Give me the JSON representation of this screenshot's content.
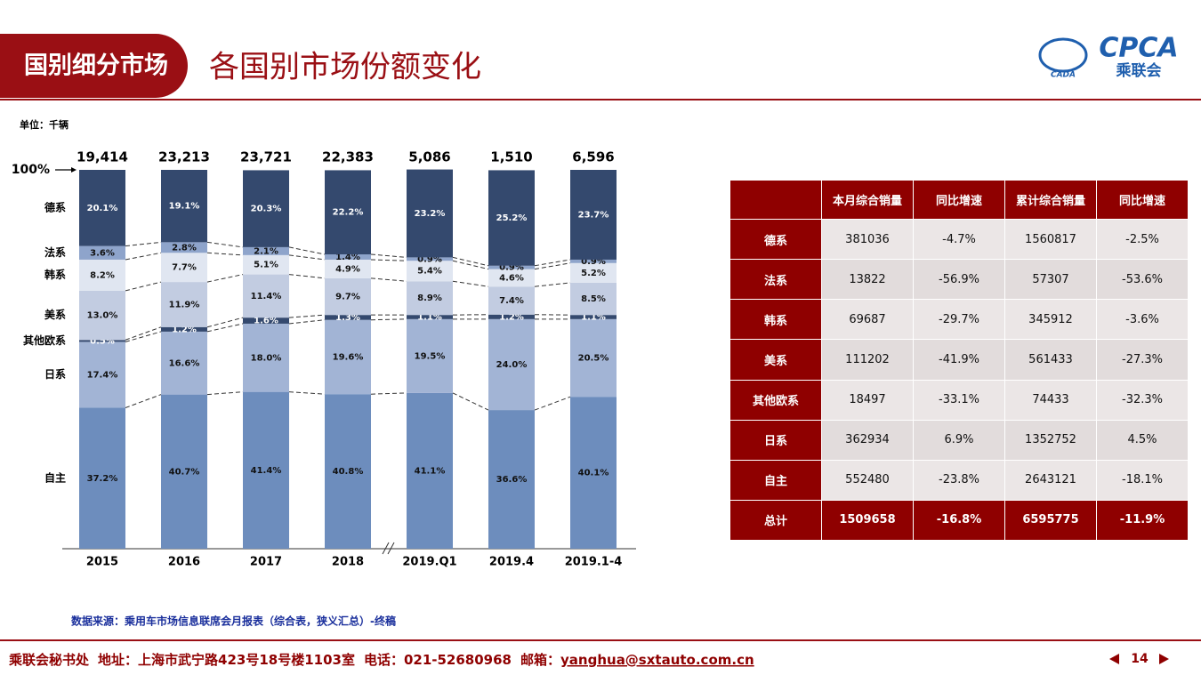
{
  "header": {
    "section": "国别细分市场",
    "title": "各国别市场份额变化",
    "logo": {
      "name": "CPCA",
      "sub": "乘联会",
      "mark": "CADA"
    }
  },
  "chart_data": {
    "type": "stacked_bar",
    "unit": "单位：千辆",
    "categories": [
      "2015",
      "2016",
      "2017",
      "2018",
      "2019.Q1",
      "2019.4",
      "2019.1-4"
    ],
    "totals": {
      "values": [
        19414,
        23213,
        23721,
        22383,
        5086,
        1510,
        6596
      ],
      "value_labels": [
        "19,414",
        "23,213",
        "23,721",
        "22,383",
        "5,086",
        "1,510",
        "6,596"
      ]
    },
    "ylim": [
      0,
      100
    ],
    "yticks": [
      {
        "value": 100,
        "label": "100%"
      }
    ],
    "series": [
      {
        "name": "自主",
        "color": "#6d8dbd",
        "values": [
          37.2,
          40.7,
          41.4,
          40.8,
          41.1,
          36.6,
          40.1
        ],
        "value_labels": [
          "37.2%",
          "40.7%",
          "41.4%",
          "40.8%",
          "41.1%",
          "36.6%",
          "40.1%"
        ]
      },
      {
        "name": "日系",
        "color": "#a2b4d5",
        "values": [
          17.4,
          16.6,
          18.0,
          19.6,
          19.5,
          24.0,
          20.5
        ],
        "value_labels": [
          "17.4%",
          "16.6%",
          "18.0%",
          "19.6%",
          "19.5%",
          "24.0%",
          "20.5%"
        ]
      },
      {
        "name": "其他欧系",
        "color": "#34496e",
        "values": [
          0.5,
          1.2,
          1.6,
          1.3,
          1.1,
          1.2,
          1.1
        ],
        "value_labels": [
          "0.5%",
          "1.2%",
          "1.6%",
          "1.3%",
          "1.1%",
          "1.2%",
          "1.1%"
        ]
      },
      {
        "name": "美系",
        "color": "#c2cce1",
        "values": [
          13.0,
          11.9,
          11.4,
          9.7,
          8.9,
          7.4,
          8.5
        ],
        "value_labels": [
          "13.0%",
          "11.9%",
          "11.4%",
          "9.7%",
          "8.9%",
          "7.4%",
          "8.5%"
        ]
      },
      {
        "name": "韩系",
        "color": "#e0e6f1",
        "values": [
          8.2,
          7.7,
          5.1,
          4.9,
          5.4,
          4.6,
          5.2
        ],
        "value_labels": [
          "8.2%",
          "7.7%",
          "5.1%",
          "4.9%",
          "5.4%",
          "4.6%",
          "5.2%"
        ]
      },
      {
        "name": "法系",
        "color": "#8ea4cb",
        "values": [
          3.6,
          2.8,
          2.1,
          1.4,
          0.9,
          0.9,
          0.9
        ],
        "value_labels": [
          "3.6%",
          "2.8%",
          "2.1%",
          "1.4%",
          "0.9%",
          "0.9%",
          "0.9%"
        ]
      },
      {
        "name": "德系",
        "color": "#34496e",
        "values": [
          20.1,
          19.1,
          20.3,
          22.2,
          23.2,
          25.2,
          23.7
        ],
        "value_labels": [
          "20.1%",
          "19.1%",
          "20.3%",
          "22.2%",
          "23.2%",
          "25.2%",
          "23.7%"
        ]
      }
    ],
    "source": "数据来源：乘用车市场信息联席会月报表（综合表，狭义汇总）-终稿"
  },
  "table": {
    "columns": [
      "本月综合销量",
      "同比增速",
      "累计综合销量",
      "同比增速"
    ],
    "rows": [
      {
        "label": "德系",
        "cells": [
          "381036",
          "-4.7%",
          "1560817",
          "-2.5%"
        ]
      },
      {
        "label": "法系",
        "cells": [
          "13822",
          "-56.9%",
          "57307",
          "-53.6%"
        ]
      },
      {
        "label": "韩系",
        "cells": [
          "69687",
          "-29.7%",
          "345912",
          "-3.6%"
        ]
      },
      {
        "label": "美系",
        "cells": [
          "111202",
          "-41.9%",
          "561433",
          "-27.3%"
        ]
      },
      {
        "label": "其他欧系",
        "cells": [
          "18497",
          "-33.1%",
          "74433",
          "-32.3%"
        ]
      },
      {
        "label": "日系",
        "cells": [
          "362934",
          "6.9%",
          "1352752",
          "4.5%"
        ]
      },
      {
        "label": "自主",
        "cells": [
          "552480",
          "-23.8%",
          "2643121",
          "-18.1%"
        ]
      },
      {
        "label": "总计",
        "cells": [
          "1509658",
          "-16.8%",
          "6595775",
          "-11.9%"
        ]
      }
    ]
  },
  "footer": {
    "org": "乘联会秘书处",
    "address": "地址：上海市武宁路423号18号楼1103室",
    "phone": "电话：021-52680968",
    "email_label": "邮箱：",
    "email": "yanghua@sxtauto.com.cn",
    "page": "14"
  }
}
